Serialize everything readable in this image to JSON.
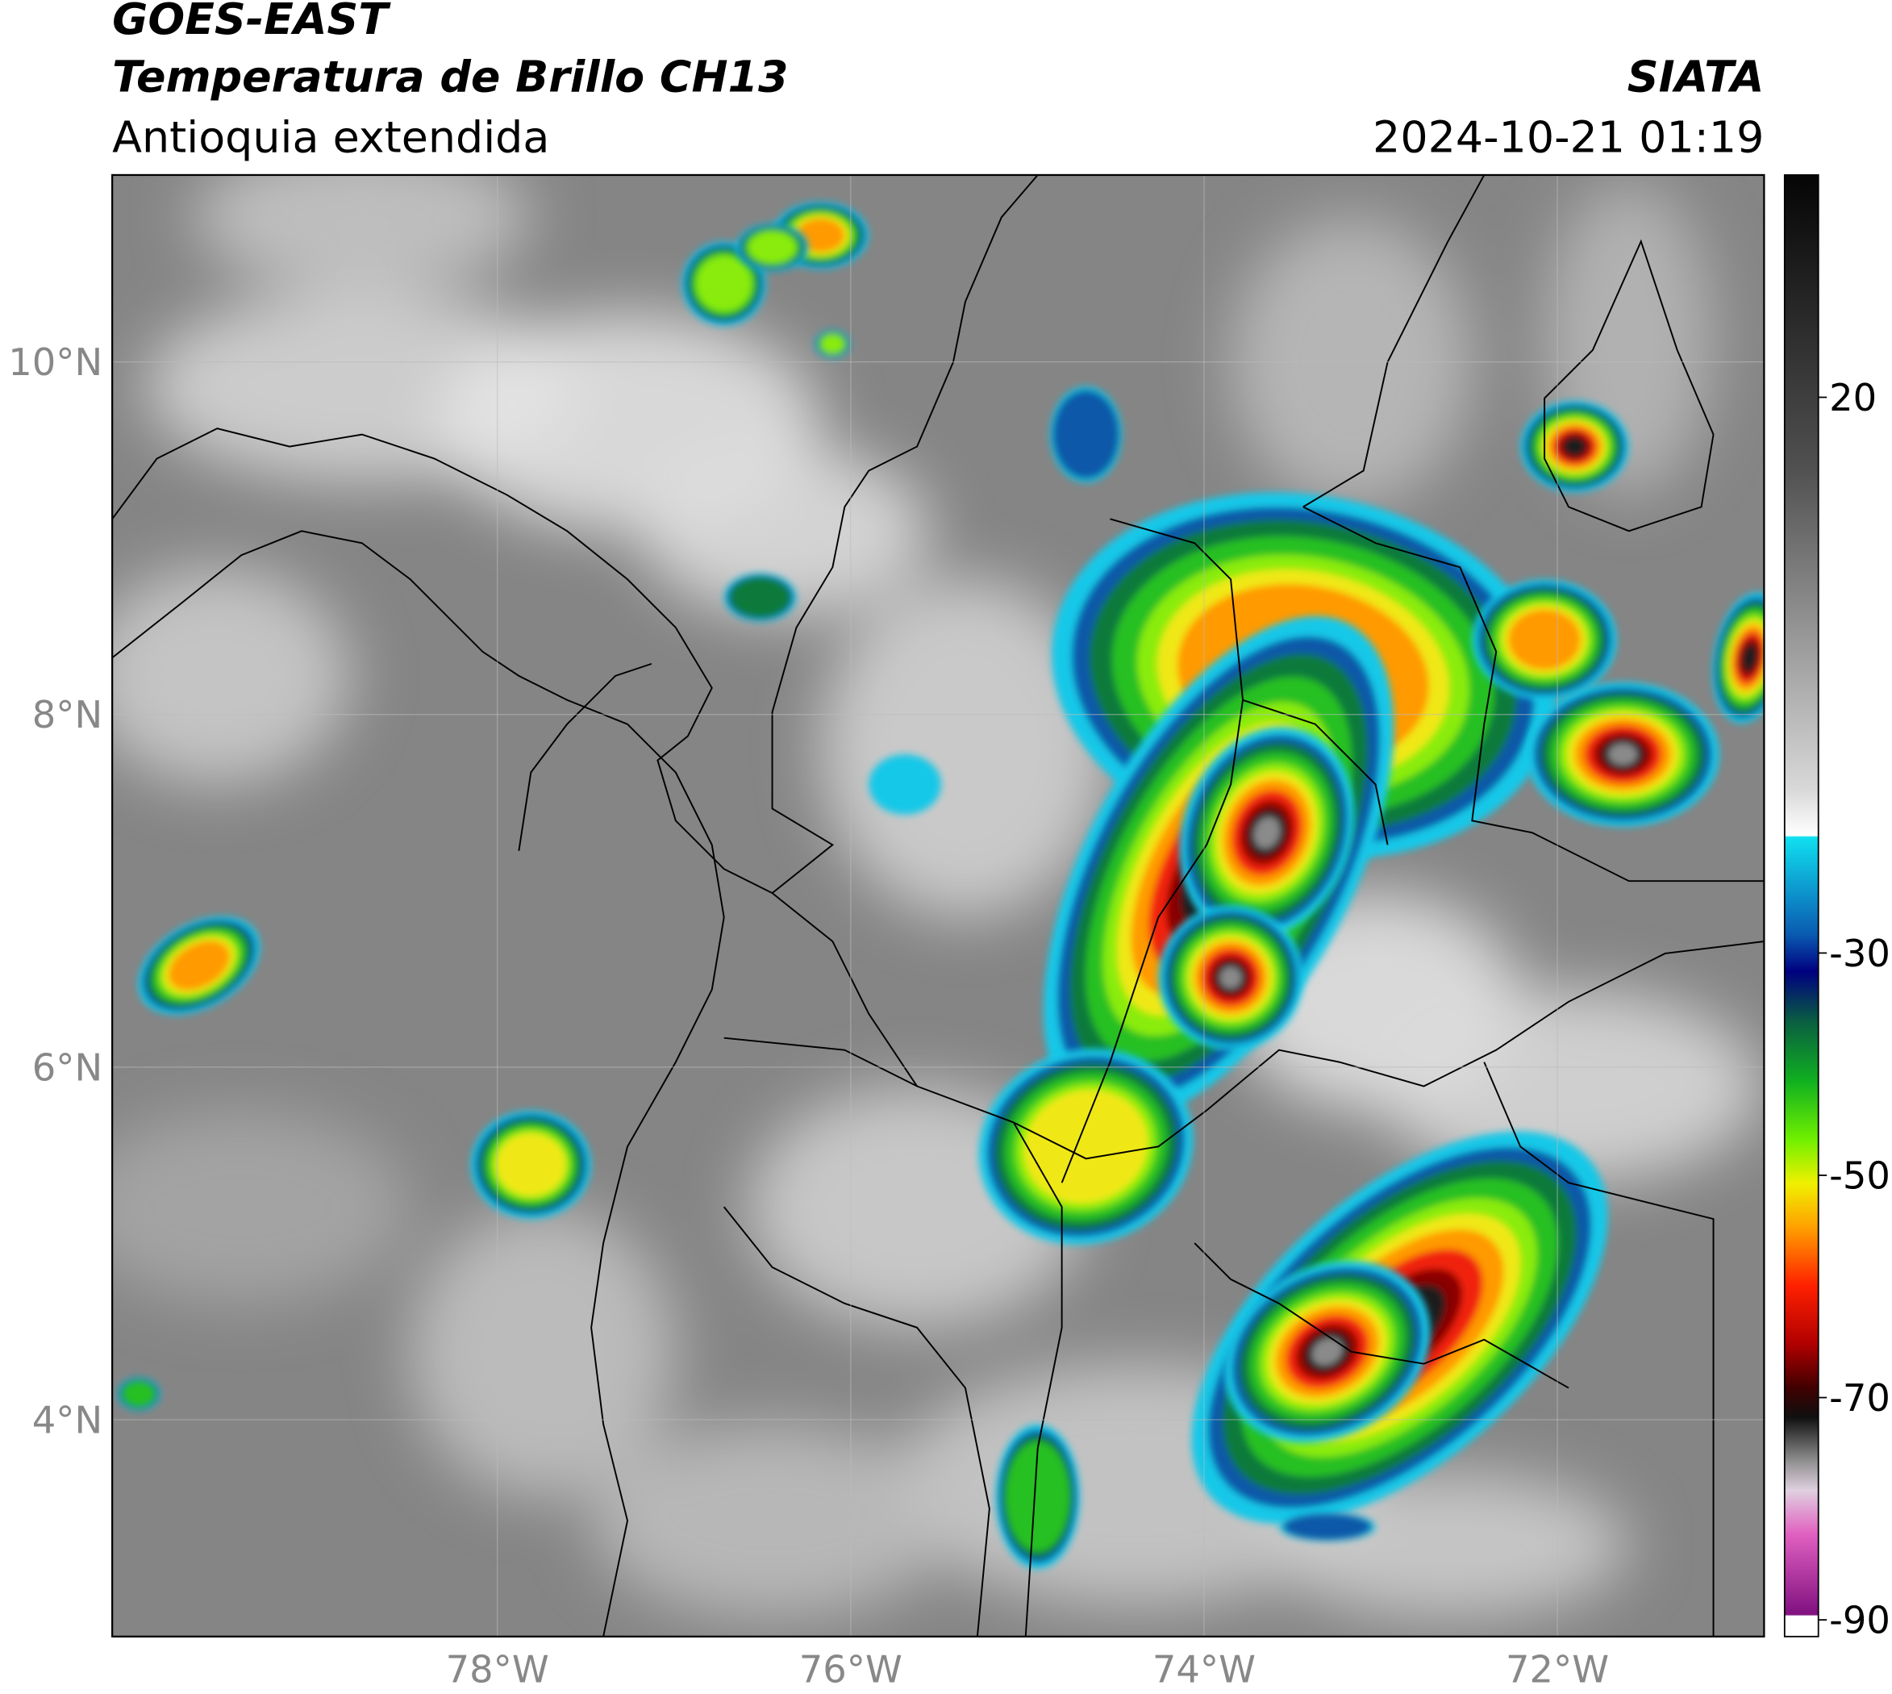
{
  "header": {
    "title": "GOES-EAST",
    "subtitle": "Temperatura de Brillo CH13",
    "region": "Antioquia extendida",
    "source": "SIATA",
    "datetime": "2024-10-21 01:19"
  },
  "map": {
    "xlim": [
      -80.18,
      -70.83
    ],
    "ylim": [
      2.77,
      11.06
    ],
    "xticks": [
      {
        "value": -78,
        "label": "78°W"
      },
      {
        "value": -76,
        "label": "76°W"
      },
      {
        "value": -74,
        "label": "74°W"
      },
      {
        "value": -72,
        "label": "72°W"
      }
    ],
    "yticks": [
      {
        "value": 10,
        "label": "10°N"
      },
      {
        "value": 8,
        "label": "8°N"
      },
      {
        "value": 6,
        "label": "6°N"
      },
      {
        "value": 4,
        "label": "4°N"
      }
    ]
  },
  "colorbar": {
    "lim": [
      -91.5,
      40
    ],
    "ticks": [
      20,
      -30,
      -50,
      -70,
      -90
    ]
  }
}
